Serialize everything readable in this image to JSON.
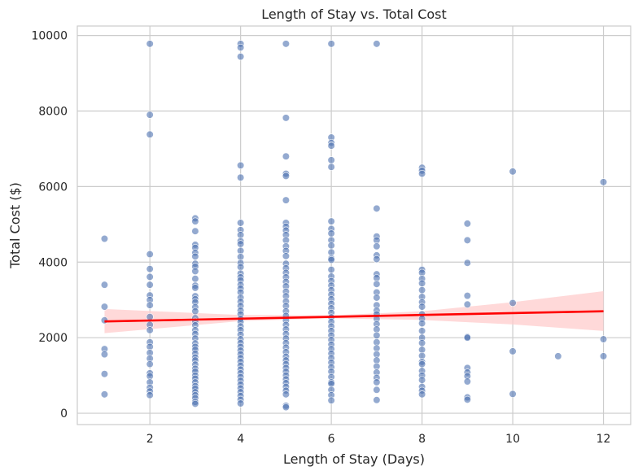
{
  "chart_data": {
    "type": "scatter",
    "title": "Length of Stay vs. Total Cost",
    "xlabel": "Length of Stay (Days)",
    "ylabel": "Total Cost ($)",
    "xlim": [
      0.4,
      12.6
    ],
    "ylim": [
      -300,
      10250
    ],
    "x_ticks": [
      2,
      4,
      6,
      8,
      10,
      12
    ],
    "y_ticks": [
      0,
      2000,
      4000,
      6000,
      8000,
      10000
    ],
    "grid": true,
    "point_color": "#4c72b0",
    "point_opacity": 0.6,
    "regression": {
      "color": "#ff0000",
      "band_color": "#ffcccc",
      "line": [
        [
          1,
          2430
        ],
        [
          12,
          2700
        ]
      ],
      "ci_upper": [
        [
          1,
          2760
        ],
        [
          4,
          2600
        ],
        [
          6,
          2590
        ],
        [
          8,
          2700
        ],
        [
          10,
          2940
        ],
        [
          12,
          3230
        ]
      ],
      "ci_lower": [
        [
          1,
          2120
        ],
        [
          4,
          2440
        ],
        [
          6,
          2510
        ],
        [
          8,
          2470
        ],
        [
          10,
          2350
        ],
        [
          12,
          2180
        ]
      ]
    },
    "series": [
      {
        "values": [
          [
            1,
            4620
          ],
          [
            1,
            3400
          ],
          [
            1,
            2820
          ],
          [
            1,
            2460
          ],
          [
            1,
            1700
          ],
          [
            1,
            1560
          ],
          [
            1,
            1040
          ],
          [
            1,
            500
          ],
          [
            2,
            9780
          ],
          [
            2,
            7900
          ],
          [
            2,
            7380
          ],
          [
            2,
            4210
          ],
          [
            2,
            3820
          ],
          [
            2,
            3610
          ],
          [
            2,
            3400
          ],
          [
            2,
            3120
          ],
          [
            2,
            3000
          ],
          [
            2,
            2860
          ],
          [
            2,
            2550
          ],
          [
            2,
            2340
          ],
          [
            2,
            2200
          ],
          [
            2,
            1880
          ],
          [
            2,
            1760
          ],
          [
            2,
            1600
          ],
          [
            2,
            1450
          ],
          [
            2,
            1300
          ],
          [
            2,
            1060
          ],
          [
            2,
            980
          ],
          [
            2,
            820
          ],
          [
            2,
            680
          ],
          [
            2,
            580
          ],
          [
            2,
            480
          ],
          [
            3,
            5160
          ],
          [
            3,
            5080
          ],
          [
            3,
            4820
          ],
          [
            3,
            4460
          ],
          [
            3,
            4380
          ],
          [
            3,
            4250
          ],
          [
            3,
            4150
          ],
          [
            3,
            3960
          ],
          [
            3,
            3880
          ],
          [
            3,
            3760
          ],
          [
            3,
            3560
          ],
          [
            3,
            3380
          ],
          [
            3,
            3320
          ],
          [
            3,
            3100
          ],
          [
            3,
            3020
          ],
          [
            3,
            2940
          ],
          [
            3,
            2810
          ],
          [
            3,
            2700
          ],
          [
            3,
            2520
          ],
          [
            3,
            2430
          ],
          [
            3,
            2330
          ],
          [
            3,
            2200
          ],
          [
            3,
            2100
          ],
          [
            3,
            1980
          ],
          [
            3,
            1850
          ],
          [
            3,
            1760
          ],
          [
            3,
            1680
          ],
          [
            3,
            1580
          ],
          [
            3,
            1480
          ],
          [
            3,
            1400
          ],
          [
            3,
            1290
          ],
          [
            3,
            1180
          ],
          [
            3,
            1100
          ],
          [
            3,
            1000
          ],
          [
            3,
            920
          ],
          [
            3,
            820
          ],
          [
            3,
            720
          ],
          [
            3,
            650
          ],
          [
            3,
            560
          ],
          [
            3,
            480
          ],
          [
            3,
            400
          ],
          [
            3,
            300
          ],
          [
            3,
            250
          ],
          [
            4,
            9780
          ],
          [
            4,
            9680
          ],
          [
            4,
            9440
          ],
          [
            4,
            6560
          ],
          [
            4,
            6240
          ],
          [
            4,
            5040
          ],
          [
            4,
            4850
          ],
          [
            4,
            4720
          ],
          [
            4,
            4560
          ],
          [
            4,
            4480
          ],
          [
            4,
            4300
          ],
          [
            4,
            4140
          ],
          [
            4,
            3980
          ],
          [
            4,
            3870
          ],
          [
            4,
            3700
          ],
          [
            4,
            3600
          ],
          [
            4,
            3520
          ],
          [
            4,
            3400
          ],
          [
            4,
            3300
          ],
          [
            4,
            3200
          ],
          [
            4,
            3060
          ],
          [
            4,
            2950
          ],
          [
            4,
            2840
          ],
          [
            4,
            2720
          ],
          [
            4,
            2620
          ],
          [
            4,
            2500
          ],
          [
            4,
            2420
          ],
          [
            4,
            2300
          ],
          [
            4,
            2200
          ],
          [
            4,
            2080
          ],
          [
            4,
            1960
          ],
          [
            4,
            1860
          ],
          [
            4,
            1760
          ],
          [
            4,
            1660
          ],
          [
            4,
            1560
          ],
          [
            4,
            1460
          ],
          [
            4,
            1360
          ],
          [
            4,
            1260
          ],
          [
            4,
            1160
          ],
          [
            4,
            1060
          ],
          [
            4,
            960
          ],
          [
            4,
            860
          ],
          [
            4,
            760
          ],
          [
            4,
            660
          ],
          [
            4,
            560
          ],
          [
            4,
            460
          ],
          [
            4,
            360
          ],
          [
            4,
            260
          ],
          [
            5,
            9780
          ],
          [
            5,
            7820
          ],
          [
            5,
            6800
          ],
          [
            5,
            6340
          ],
          [
            5,
            6280
          ],
          [
            5,
            5640
          ],
          [
            5,
            5040
          ],
          [
            5,
            4940
          ],
          [
            5,
            4840
          ],
          [
            5,
            4720
          ],
          [
            5,
            4580
          ],
          [
            5,
            4420
          ],
          [
            5,
            4300
          ],
          [
            5,
            4160
          ],
          [
            5,
            3960
          ],
          [
            5,
            3840
          ],
          [
            5,
            3720
          ],
          [
            5,
            3600
          ],
          [
            5,
            3480
          ],
          [
            5,
            3360
          ],
          [
            5,
            3220
          ],
          [
            5,
            3100
          ],
          [
            5,
            2960
          ],
          [
            5,
            2840
          ],
          [
            5,
            2700
          ],
          [
            5,
            2580
          ],
          [
            5,
            2460
          ],
          [
            5,
            2340
          ],
          [
            5,
            2220
          ],
          [
            5,
            2100
          ],
          [
            5,
            1980
          ],
          [
            5,
            1860
          ],
          [
            5,
            1740
          ],
          [
            5,
            1620
          ],
          [
            5,
            1500
          ],
          [
            5,
            1400
          ],
          [
            5,
            1300
          ],
          [
            5,
            1200
          ],
          [
            5,
            1100
          ],
          [
            5,
            1000
          ],
          [
            5,
            900
          ],
          [
            5,
            800
          ],
          [
            5,
            700
          ],
          [
            5,
            600
          ],
          [
            5,
            500
          ],
          [
            5,
            200
          ],
          [
            5,
            160
          ],
          [
            6,
            9780
          ],
          [
            6,
            7300
          ],
          [
            6,
            7160
          ],
          [
            6,
            7080
          ],
          [
            6,
            6700
          ],
          [
            6,
            6520
          ],
          [
            6,
            5080
          ],
          [
            6,
            4880
          ],
          [
            6,
            4760
          ],
          [
            6,
            4580
          ],
          [
            6,
            4440
          ],
          [
            6,
            4260
          ],
          [
            6,
            4100
          ],
          [
            6,
            4060
          ],
          [
            6,
            3800
          ],
          [
            6,
            3620
          ],
          [
            6,
            3500
          ],
          [
            6,
            3380
          ],
          [
            6,
            3260
          ],
          [
            6,
            3140
          ],
          [
            6,
            3020
          ],
          [
            6,
            2900
          ],
          [
            6,
            2780
          ],
          [
            6,
            2660
          ],
          [
            6,
            2540
          ],
          [
            6,
            2420
          ],
          [
            6,
            2300
          ],
          [
            6,
            2180
          ],
          [
            6,
            2060
          ],
          [
            6,
            1940
          ],
          [
            6,
            1820
          ],
          [
            6,
            1700
          ],
          [
            6,
            1580
          ],
          [
            6,
            1460
          ],
          [
            6,
            1340
          ],
          [
            6,
            1220
          ],
          [
            6,
            1100
          ],
          [
            6,
            960
          ],
          [
            6,
            820
          ],
          [
            6,
            780
          ],
          [
            6,
            620
          ],
          [
            6,
            480
          ],
          [
            6,
            340
          ],
          [
            7,
            9780
          ],
          [
            7,
            5420
          ],
          [
            7,
            4680
          ],
          [
            7,
            4580
          ],
          [
            7,
            4420
          ],
          [
            7,
            4180
          ],
          [
            7,
            4080
          ],
          [
            7,
            3680
          ],
          [
            7,
            3580
          ],
          [
            7,
            3420
          ],
          [
            7,
            3200
          ],
          [
            7,
            3060
          ],
          [
            7,
            2860
          ],
          [
            7,
            2720
          ],
          [
            7,
            2620
          ],
          [
            7,
            2500
          ],
          [
            7,
            2360
          ],
          [
            7,
            2220
          ],
          [
            7,
            2060
          ],
          [
            7,
            1880
          ],
          [
            7,
            1720
          ],
          [
            7,
            1560
          ],
          [
            7,
            1400
          ],
          [
            7,
            1240
          ],
          [
            7,
            1080
          ],
          [
            7,
            940
          ],
          [
            7,
            820
          ],
          [
            7,
            620
          ],
          [
            7,
            350
          ],
          [
            8,
            6500
          ],
          [
            8,
            6420
          ],
          [
            8,
            6340
          ],
          [
            8,
            3800
          ],
          [
            8,
            3720
          ],
          [
            8,
            3560
          ],
          [
            8,
            3440
          ],
          [
            8,
            3260
          ],
          [
            8,
            3080
          ],
          [
            8,
            2940
          ],
          [
            8,
            2820
          ],
          [
            8,
            2620
          ],
          [
            8,
            2500
          ],
          [
            8,
            2380
          ],
          [
            8,
            2180
          ],
          [
            8,
            2000
          ],
          [
            8,
            1860
          ],
          [
            8,
            1680
          ],
          [
            8,
            1520
          ],
          [
            8,
            1360
          ],
          [
            8,
            1300
          ],
          [
            8,
            1120
          ],
          [
            8,
            1000
          ],
          [
            8,
            880
          ],
          [
            8,
            700
          ],
          [
            8,
            600
          ],
          [
            8,
            500
          ],
          [
            9,
            5020
          ],
          [
            9,
            4580
          ],
          [
            9,
            3980
          ],
          [
            9,
            3110
          ],
          [
            9,
            2880
          ],
          [
            9,
            2020
          ],
          [
            9,
            2000
          ],
          [
            9,
            1200
          ],
          [
            9,
            1080
          ],
          [
            9,
            980
          ],
          [
            9,
            840
          ],
          [
            9,
            420
          ],
          [
            9,
            360
          ],
          [
            10,
            6400
          ],
          [
            10,
            2920
          ],
          [
            10,
            1640
          ],
          [
            10,
            510
          ],
          [
            11,
            1510
          ],
          [
            12,
            6120
          ],
          [
            12,
            1960
          ],
          [
            12,
            1510
          ]
        ]
      }
    ]
  }
}
